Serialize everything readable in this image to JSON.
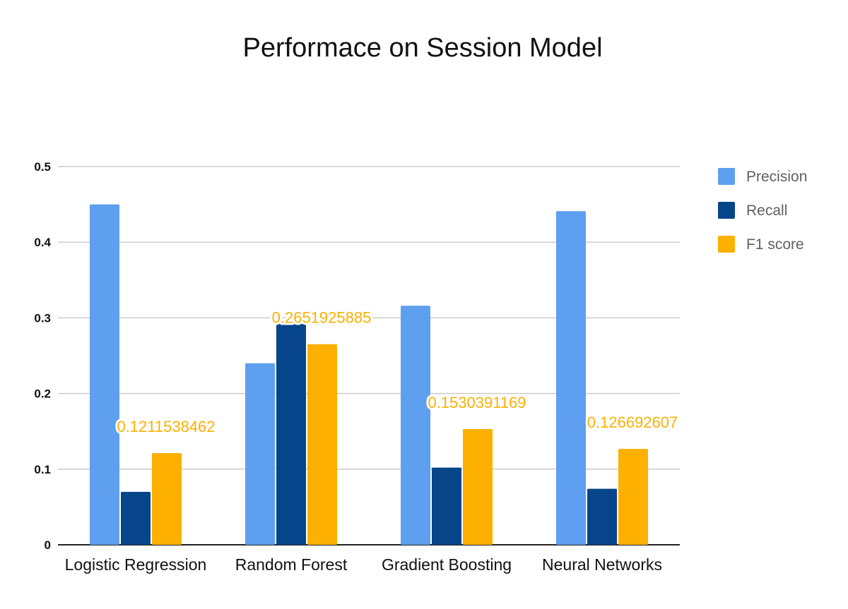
{
  "chart_data": {
    "type": "bar",
    "title": "Performace on Session Model",
    "xlabel": "",
    "ylabel": "",
    "ylim": [
      0,
      0.5
    ],
    "yticks": [
      0,
      0.1,
      0.2,
      0.3,
      0.4,
      0.5
    ],
    "ytick_labels": [
      "0",
      "0.1",
      "0.2",
      "0.3",
      "0.4",
      "0.5"
    ],
    "grid": true,
    "legend_position": "right",
    "categories": [
      "Logistic Regression",
      "Random Forest",
      "Gradient Boosting",
      "Neural Networks"
    ],
    "series": [
      {
        "name": "Precision",
        "color": "#5e9ff0",
        "values": [
          0.45,
          0.24,
          0.316,
          0.441
        ]
      },
      {
        "name": "Recall",
        "color": "#064589",
        "values": [
          0.07,
          0.292,
          0.102,
          0.074
        ]
      },
      {
        "name": "F1 score",
        "color": "#fdb000",
        "values": [
          0.1211538462,
          0.2651925885,
          0.1530391169,
          0.126692607
        ]
      }
    ],
    "data_labels": {
      "series": "F1 score",
      "color": "#fdb000",
      "labels": [
        "0.1211538462",
        "0.2651925885",
        "0.1530391169",
        "0.126692607"
      ]
    }
  }
}
